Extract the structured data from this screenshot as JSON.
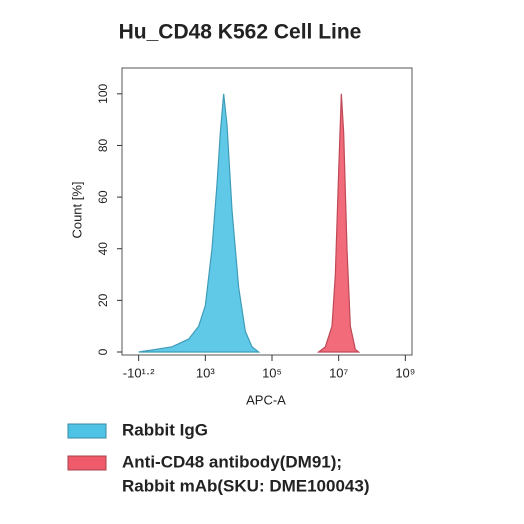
{
  "chart_data": {
    "type": "area",
    "title": "Hu_CD48 K562 Cell Line",
    "xlabel": "APC-A",
    "ylabel": "Count [%]",
    "xlim": [
      0.5,
      9.2
    ],
    "ylim": [
      0,
      110
    ],
    "xticks": [
      {
        "value": 1,
        "label": "-10¹·²"
      },
      {
        "value": 3,
        "label": "10³"
      },
      {
        "value": 5,
        "label": "10⁵"
      },
      {
        "value": 7,
        "label": "10⁷"
      },
      {
        "value": 9,
        "label": "10⁹"
      }
    ],
    "yticks": [
      0,
      20,
      40,
      60,
      80,
      100
    ],
    "series": [
      {
        "name": [
          "Rabbit IgG"
        ],
        "color": "#4fc3e6",
        "x": [
          1.0,
          1.5,
          2.0,
          2.5,
          2.8,
          3.0,
          3.2,
          3.35,
          3.45,
          3.55,
          3.65,
          3.8,
          4.0,
          4.2,
          4.4,
          4.6
        ],
        "values": [
          0,
          1,
          2,
          5,
          10,
          18,
          40,
          65,
          85,
          100,
          88,
          55,
          25,
          8,
          2,
          0
        ]
      },
      {
        "name": [
          "Anti-CD48 antibody(DM91);",
          "Rabbit mAb(SKU: DME100043)"
        ],
        "color": "#ef5b6b",
        "x": [
          6.4,
          6.6,
          6.8,
          6.9,
          7.0,
          7.08,
          7.15,
          7.25,
          7.35,
          7.5,
          7.6
        ],
        "values": [
          0,
          2,
          10,
          30,
          70,
          100,
          85,
          40,
          10,
          1,
          0
        ]
      }
    ]
  }
}
